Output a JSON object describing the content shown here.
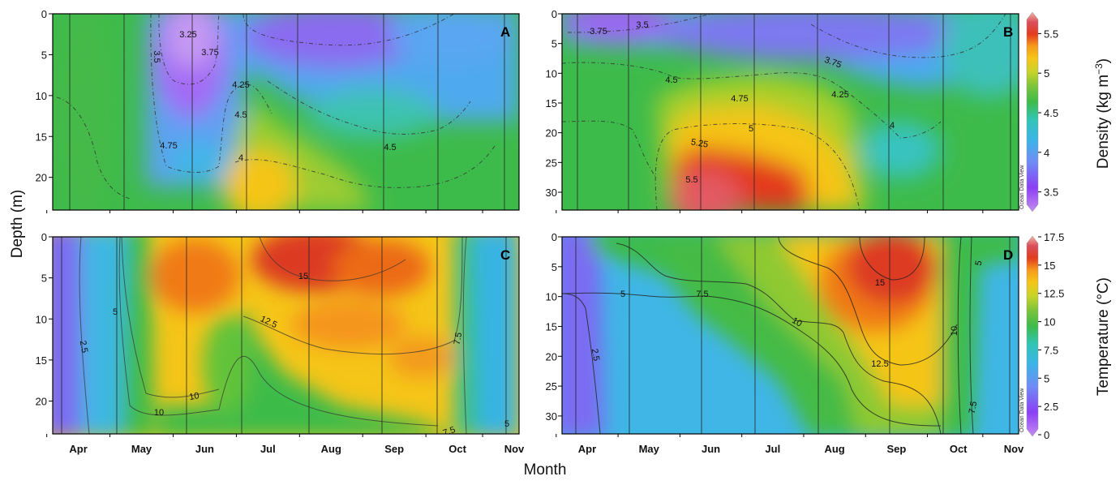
{
  "colors": {
    "scale": [
      "#c58cf0",
      "#8a3ff5",
      "#6f8cf5",
      "#3bb4e8",
      "#31c5b6",
      "#3dbb4a",
      "#7cc43a",
      "#c8d32a",
      "#f5c518",
      "#f59a1a",
      "#e23b1f",
      "#d94f5c",
      "#f4b7a6"
    ]
  },
  "chart_data": [
    {
      "panel": "A",
      "type": "heatmap",
      "variable": "density",
      "xlabel": "Month",
      "ylabel": "Depth (m)",
      "x_ticks": [
        "Apr",
        "May",
        "Jun",
        "Jul",
        "Aug",
        "Sep",
        "Oct",
        "Nov"
      ],
      "y_ticks": [
        0,
        5,
        10,
        15,
        20
      ],
      "ylim": [
        24,
        0
      ],
      "contour_labels": [
        "3.25",
        "3.5",
        "3.75",
        "4.25",
        "4.5",
        "4.75",
        "4",
        "4.5"
      ]
    },
    {
      "panel": "B",
      "type": "heatmap",
      "variable": "density",
      "x_ticks": [
        "Apr",
        "May",
        "Jun",
        "Jul",
        "Aug",
        "Sep",
        "Oct",
        "Nov"
      ],
      "y_ticks": [
        0,
        5,
        10,
        15,
        20,
        25,
        30
      ],
      "ylim": [
        33,
        0
      ],
      "contour_labels": [
        "3.75",
        "3.5",
        "3.75",
        "4.5",
        "4.75",
        "4.25",
        "5",
        "5.25",
        "5.5",
        "4"
      ],
      "colorbar": {
        "label": "Density (kg m⁻³)",
        "ticks": [
          3.5,
          4,
          4.5,
          5,
          5.5
        ],
        "range": [
          3.25,
          5.75
        ],
        "source": "Ocean Data View"
      }
    },
    {
      "panel": "C",
      "type": "heatmap",
      "variable": "temperature",
      "x_ticks": [
        "Apr",
        "May",
        "Jun",
        "Jul",
        "Aug",
        "Sep",
        "Oct",
        "Nov"
      ],
      "y_ticks": [
        0,
        5,
        10,
        15,
        20
      ],
      "ylim": [
        24,
        0
      ],
      "contour_labels": [
        "2.5",
        "5",
        "15",
        "12.5",
        "10",
        "10",
        "7.5",
        "7.5",
        "5"
      ]
    },
    {
      "panel": "D",
      "type": "heatmap",
      "variable": "temperature",
      "x_ticks": [
        "Apr",
        "May",
        "Jun",
        "Jul",
        "Aug",
        "Sep",
        "Oct",
        "Nov"
      ],
      "y_ticks": [
        0,
        5,
        10,
        15,
        20,
        25,
        30
      ],
      "ylim": [
        33,
        0
      ],
      "contour_labels": [
        "2.5",
        "5",
        "7.5",
        "10",
        "15",
        "12.5",
        "10",
        "7.5",
        "5"
      ],
      "colorbar": {
        "label": "Temperature (°C)",
        "ticks": [
          0,
          2.5,
          5,
          7.5,
          10,
          12.5,
          15,
          17.5
        ],
        "range": [
          0,
          17.5
        ],
        "source": "Ocean Data View"
      }
    }
  ],
  "labels": {
    "depth_axis": "Depth (m)",
    "month_axis": "Month",
    "panel_a": "A",
    "panel_b": "B",
    "panel_c": "C",
    "panel_d": "D",
    "density_title": "Density (kg m",
    "density_sup": "−3",
    "density_close": ")",
    "temp_title": "Temperature (°C)",
    "odv": "Ocean Data View"
  }
}
